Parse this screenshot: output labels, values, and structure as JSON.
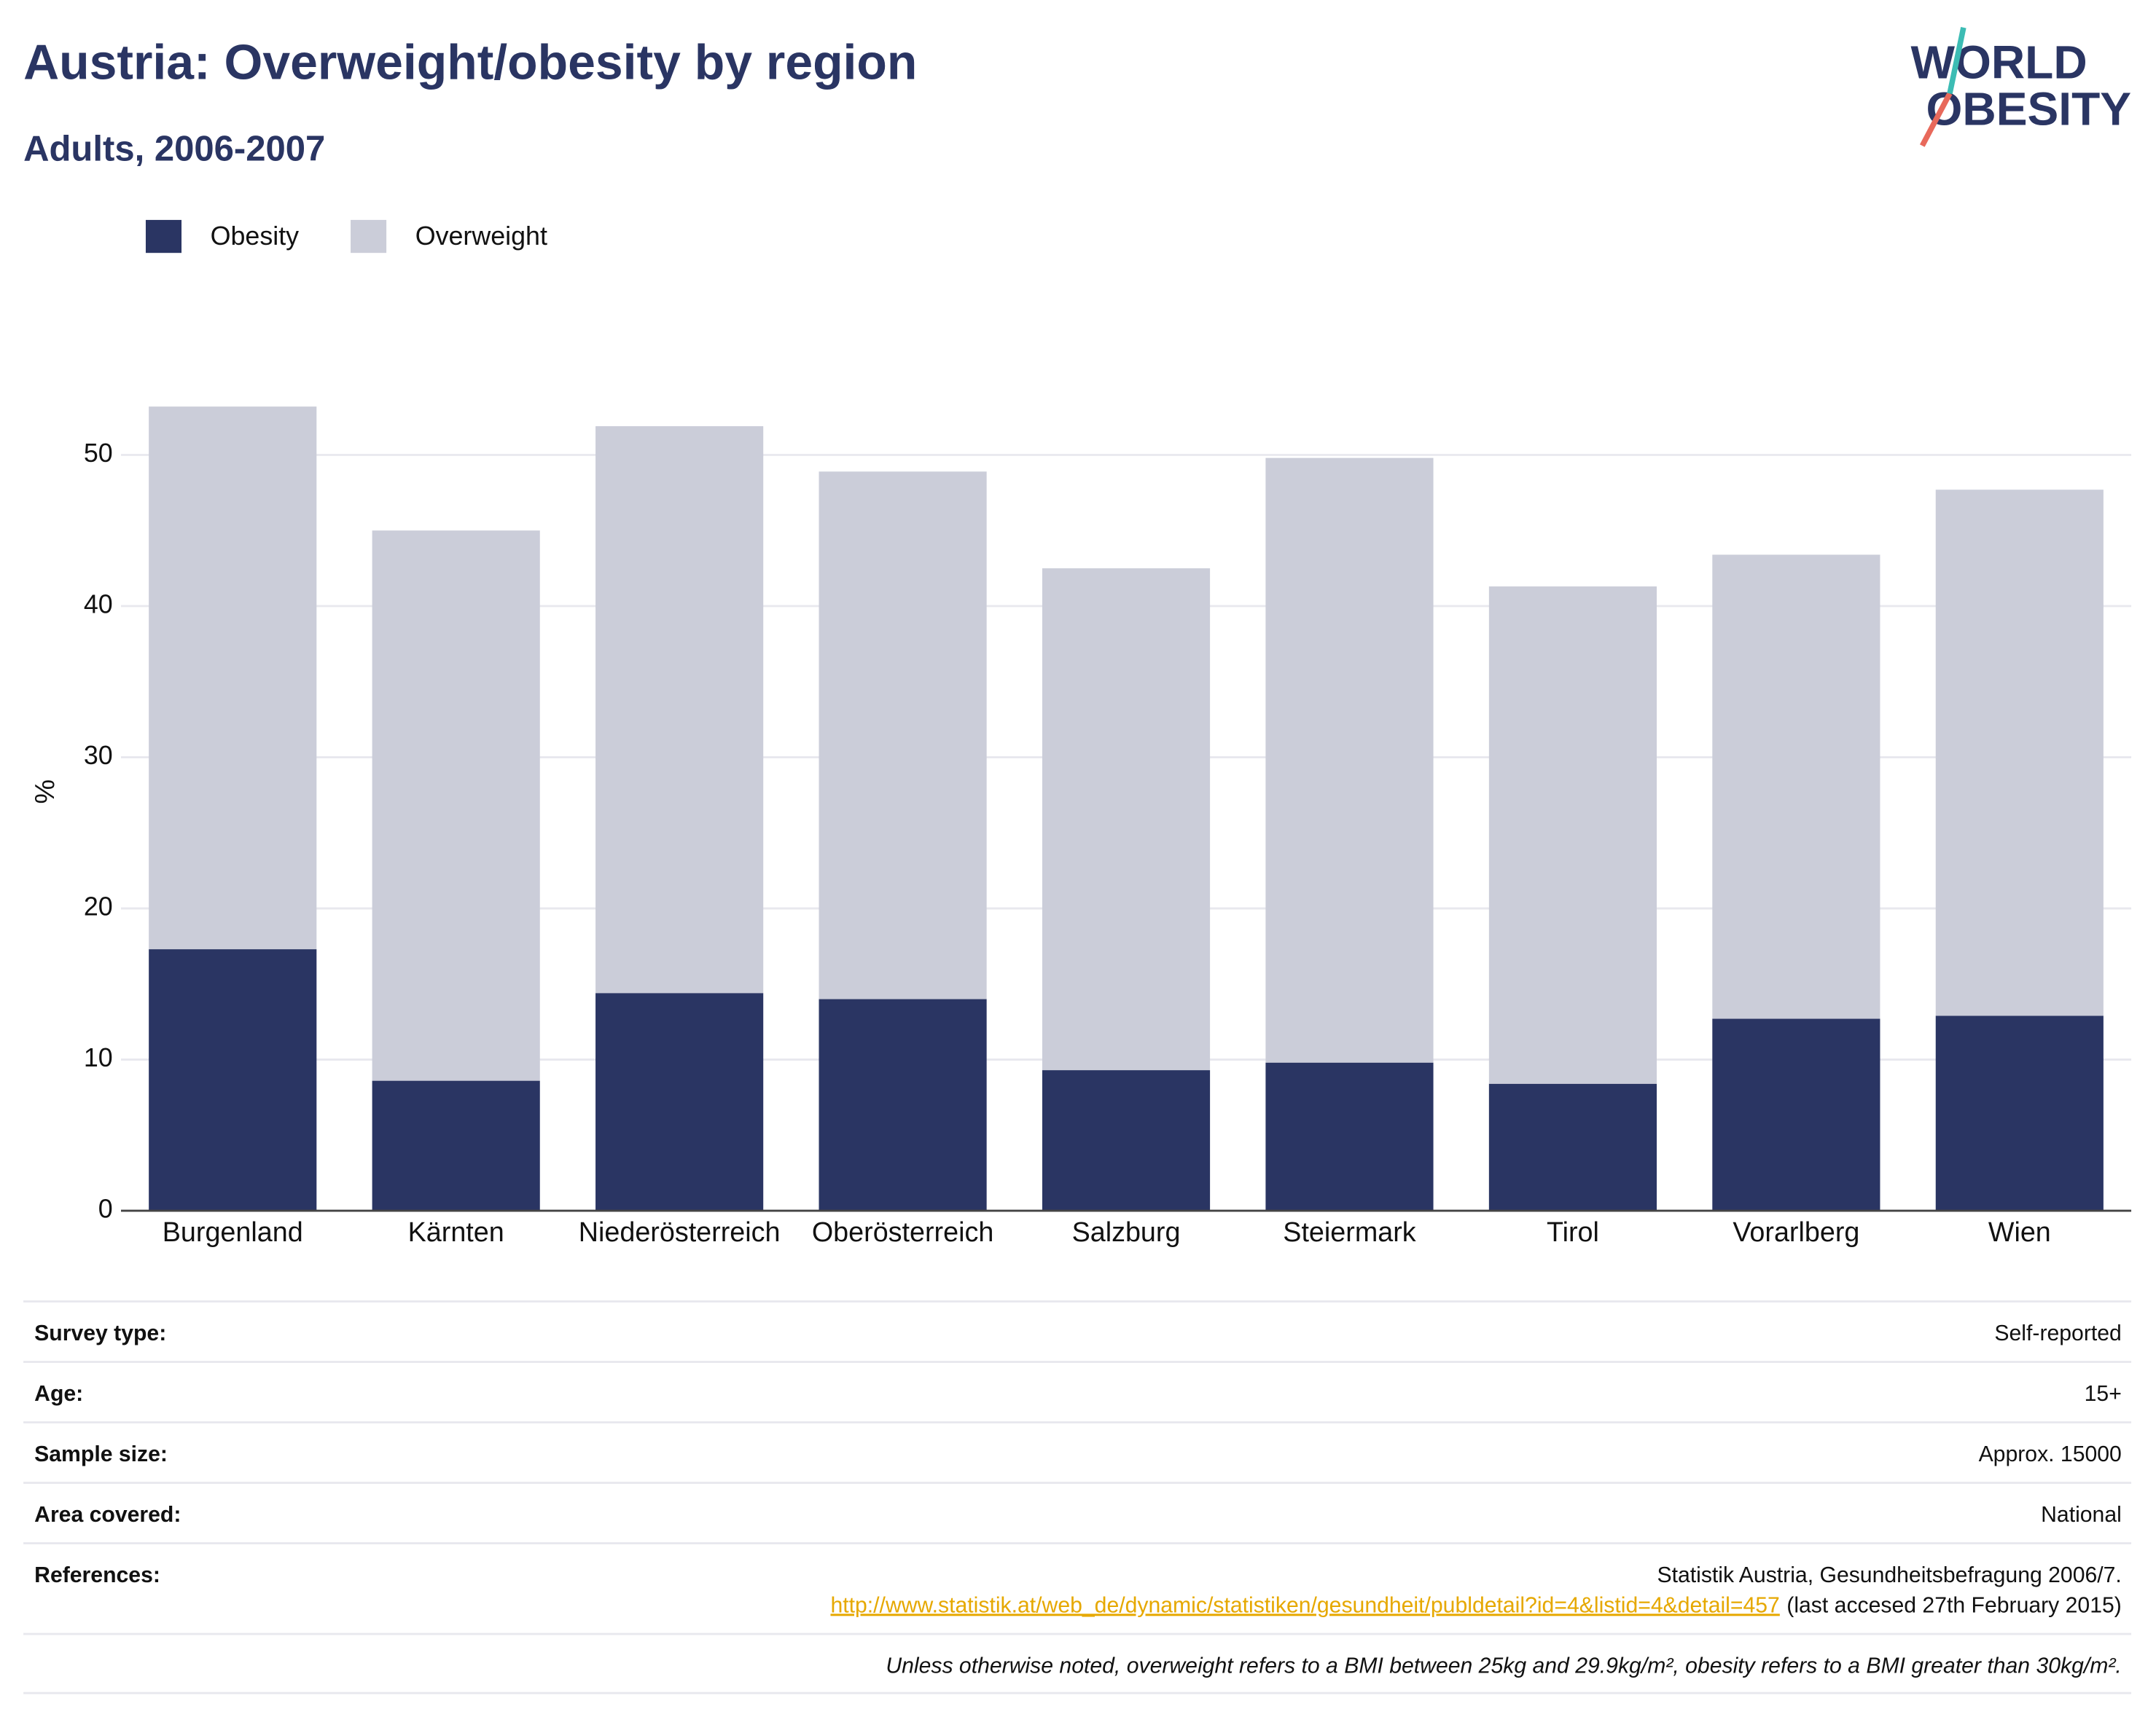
{
  "chart_data": {
    "type": "stacked_bar",
    "title": "Austria: Overweight/obesity by region",
    "subtitle": "Adults, 2006-2007",
    "y_label": "%",
    "categories": [
      "Burgenland",
      "Kärnten",
      "Niederösterreich",
      "Oberösterreich",
      "Salzburg",
      "Steiermark",
      "Tirol",
      "Vorarlberg",
      "Wien"
    ],
    "series": [
      {
        "name": "Obesity",
        "color": "#2a3563",
        "values": [
          17.3,
          8.6,
          14.4,
          14.0,
          9.3,
          9.8,
          8.4,
          12.7,
          12.9
        ]
      },
      {
        "name": "Overweight",
        "color": "#cbcdd9",
        "values": [
          35.9,
          36.4,
          37.5,
          34.9,
          33.2,
          40.0,
          32.9,
          30.7,
          34.8
        ]
      }
    ],
    "ylim": [
      0,
      55
    ],
    "yticks": [
      0,
      10,
      20,
      30,
      40,
      50
    ],
    "grid": true
  },
  "logo": [
    "WORLD",
    "OBESITY"
  ],
  "info": {
    "rows": [
      {
        "label": "Survey type:",
        "value": "Self-reported"
      },
      {
        "label": "Age:",
        "value": "15+"
      },
      {
        "label": "Sample size:",
        "value": "Approx. 15000"
      },
      {
        "label": "Area covered:",
        "value": "National"
      }
    ],
    "references": {
      "label": "References:",
      "text": "Statistik Austria, Gesundheitsbefragung 2006/7.",
      "link": "http://www.statistik.at/web_de/dynamic/statistiken/gesundheit/publdetail?id=4&listid=4&detail=457",
      "suffix": "(last accesed 27th February 2015)"
    },
    "note": "Unless otherwise noted, overweight refers to a BMI between 25kg and 29.9kg/m², obesity refers to a BMI greater than 30kg/m²."
  }
}
